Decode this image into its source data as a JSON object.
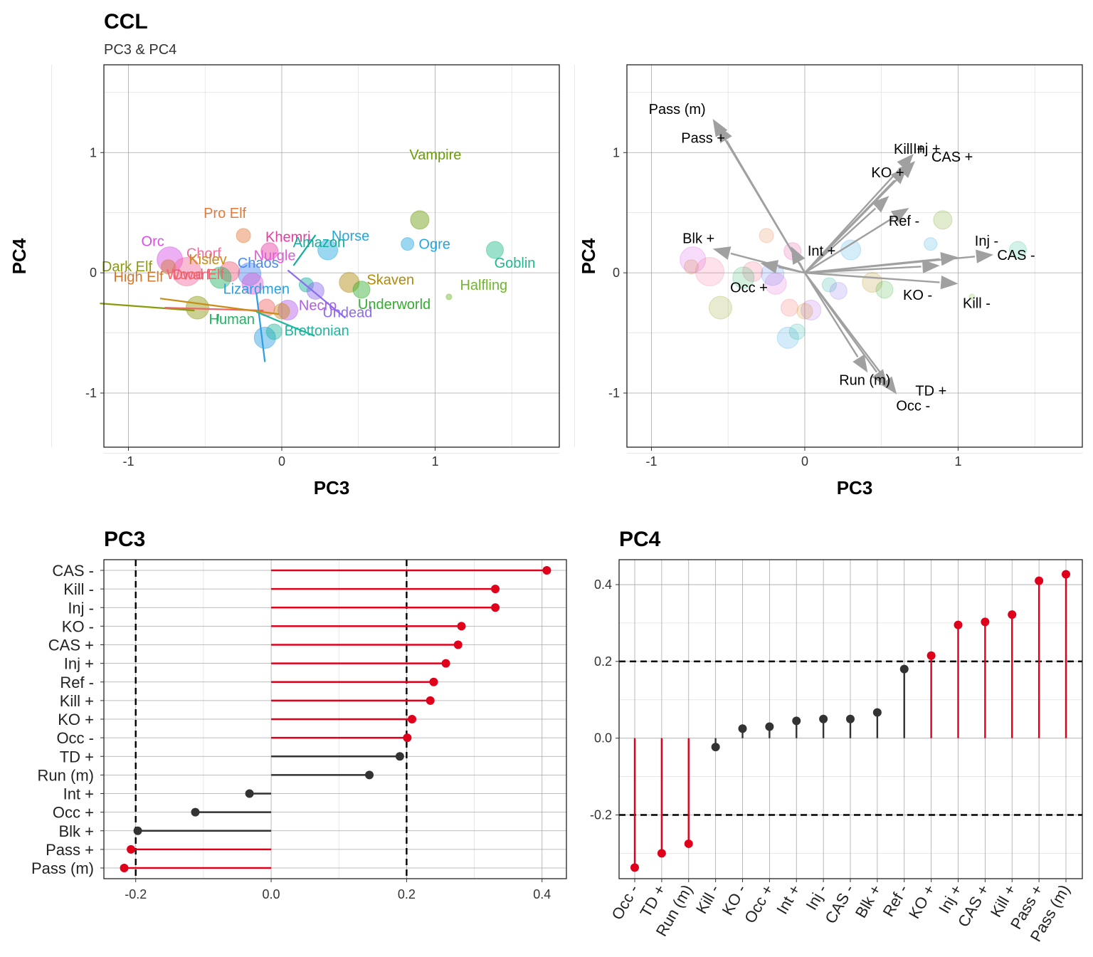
{
  "title": "CCL",
  "subtitle": "PC3 & PC4",
  "colors": {
    "positive_highlight": "#e0001b",
    "neutral": "#333333",
    "arrow": "#a0a0a0"
  },
  "chart_data": [
    {
      "type": "scatter",
      "xlabel": "PC3",
      "ylabel": "PC4",
      "xlim": [
        -1.16,
        1.81
      ],
      "ylim": [
        -1.45,
        1.73
      ],
      "xticks": [
        -1,
        0,
        1
      ],
      "yticks": [
        -1,
        0,
        1
      ],
      "grid": true,
      "points": [
        {
          "name": "Vampire",
          "x": 0.9,
          "y": 0.44,
          "size": 13,
          "color": "#6a9c08"
        },
        {
          "name": "Pro Elf",
          "x": -0.25,
          "y": 0.31,
          "size": 10,
          "color": "#e37a39"
        },
        {
          "name": "Khemri",
          "x": -0.08,
          "y": 0.18,
          "size": 12,
          "color": "#e63ba1"
        },
        {
          "name": "Norse",
          "x": 0.3,
          "y": 0.19,
          "size": 14,
          "color": "#24a6e0"
        },
        {
          "name": "Ogre",
          "x": 0.82,
          "y": 0.24,
          "size": 9,
          "color": "#24a6e0"
        },
        {
          "name": "Goblin",
          "x": 1.39,
          "y": 0.19,
          "size": 12,
          "color": "#1eba8c"
        },
        {
          "name": "Orc",
          "x": -0.73,
          "y": 0.11,
          "size": 18,
          "color": "#d84de6"
        },
        {
          "name": "Chorf",
          "x": -0.62,
          "y": 0.01,
          "size": 20,
          "color": "#f36b9c"
        },
        {
          "name": "High Elf",
          "x": -0.74,
          "y": 0.05,
          "size": 10,
          "color": "#d1762c"
        },
        {
          "name": "Chaos",
          "x": -0.21,
          "y": -0.01,
          "size": 16,
          "color": "#4a89f0"
        },
        {
          "name": "Amazon",
          "x": 0.16,
          "y": -0.1,
          "size": 10,
          "color": "#14ad9c"
        },
        {
          "name": "Skaven",
          "x": 0.44,
          "y": -0.08,
          "size": 14,
          "color": "#b08a08"
        },
        {
          "name": "Dwarf",
          "x": -0.34,
          "y": 0.01,
          "size": 14,
          "color": "#f05a7a"
        },
        {
          "name": "Human",
          "x": -0.4,
          "y": -0.04,
          "size": 15,
          "color": "#22b361"
        },
        {
          "name": "Nurgle",
          "x": -0.19,
          "y": -0.09,
          "size": 15,
          "color": "#e05bd8"
        },
        {
          "name": "Necro",
          "x": 0.04,
          "y": -0.31,
          "size": 14,
          "color": "#b35be6"
        },
        {
          "name": "Underworld",
          "x": 0.52,
          "y": -0.14,
          "size": 12,
          "color": "#33ad2e"
        },
        {
          "name": "Halfling",
          "x": 1.09,
          "y": -0.2,
          "size": 4,
          "color": "#6fb62d"
        },
        {
          "name": "Undead",
          "x": 0.22,
          "y": -0.15,
          "size": 12,
          "color": "#8d6bf0"
        },
        {
          "name": "Dark Elf",
          "x": -0.55,
          "y": -0.29,
          "size": 16,
          "color": "#8a9a0d"
        },
        {
          "name": "Wood Elf",
          "x": -0.1,
          "y": -0.29,
          "size": 12,
          "color": "#f06666"
        },
        {
          "name": "Lizardmen",
          "x": -0.11,
          "y": -0.54,
          "size": 15,
          "color": "#2a9ee3"
        },
        {
          "name": "Brettonian",
          "x": -0.05,
          "y": -0.49,
          "size": 11,
          "color": "#1fb59f"
        },
        {
          "name": "Kislev",
          "x": 0.0,
          "y": -0.32,
          "size": 11,
          "color": "#c98c14"
        }
      ]
    },
    {
      "type": "biplot",
      "xlabel": "PC3",
      "ylabel": "PC4",
      "xlim": [
        -1.16,
        1.81
      ],
      "ylim": [
        -1.45,
        1.73
      ],
      "xticks": [
        -1,
        0,
        1
      ],
      "yticks": [
        -1,
        0,
        1
      ],
      "grid": true,
      "arrows": [
        {
          "name": "Pass (m)",
          "x": -0.6,
          "y": 1.28
        },
        {
          "name": "Pass +",
          "x": -0.57,
          "y": 1.23
        },
        {
          "name": "Kill +",
          "x": 0.71,
          "y": 0.99
        },
        {
          "name": "CAS +",
          "x": 0.72,
          "y": 0.93
        },
        {
          "name": "Inj +",
          "x": 0.67,
          "y": 0.88
        },
        {
          "name": "KO +",
          "x": 0.55,
          "y": 0.64
        },
        {
          "name": "Ref -",
          "x": 0.68,
          "y": 0.54
        },
        {
          "name": "Int +",
          "x": -0.09,
          "y": 0.22
        },
        {
          "name": "Blk +",
          "x": -0.6,
          "y": 0.2
        },
        {
          "name": "Occ +",
          "x": -0.29,
          "y": 0.08
        },
        {
          "name": "Inj -",
          "x": 1.0,
          "y": 0.13
        },
        {
          "name": "CAS -",
          "x": 1.23,
          "y": 0.15
        },
        {
          "name": "KO -",
          "x": 0.88,
          "y": 0.06
        },
        {
          "name": "Kill -",
          "x": 1.0,
          "y": -0.09
        },
        {
          "name": "Run (m)",
          "x": 0.41,
          "y": -0.83
        },
        {
          "name": "TD +",
          "x": 0.54,
          "y": -0.95
        },
        {
          "name": "Occ -",
          "x": 0.6,
          "y": -1.01
        }
      ]
    },
    {
      "type": "lollipop",
      "title": "PC3",
      "orientation": "horizontal",
      "xlim": [
        -0.247,
        0.436
      ],
      "xticks": [
        "-0.2",
        "0.0",
        "0.2",
        "0.4"
      ],
      "threshold_lines": [
        -0.2,
        0.2
      ],
      "categories": [
        "CAS -",
        "Kill -",
        "Inj -",
        "KO -",
        "CAS +",
        "Inj +",
        "Ref -",
        "Kill +",
        "KO +",
        "Occ -",
        "TD +",
        "Run (m)",
        "Int +",
        "Occ +",
        "Blk +",
        "Pass +",
        "Pass (m)"
      ],
      "values": [
        0.407,
        0.331,
        0.331,
        0.281,
        0.276,
        0.258,
        0.24,
        0.235,
        0.208,
        0.201,
        0.19,
        0.145,
        -0.032,
        -0.112,
        -0.197,
        -0.207,
        -0.217
      ]
    },
    {
      "type": "lollipop",
      "title": "PC4",
      "orientation": "vertical",
      "ylim": [
        -0.366,
        0.465
      ],
      "yticks": [
        "-0.2",
        "0.0",
        "0.2",
        "0.4"
      ],
      "threshold_lines": [
        -0.2,
        0.2
      ],
      "categories": [
        "Occ -",
        "TD +",
        "Run (m)",
        "Kill -",
        "KO -",
        "Occ +",
        "Int +",
        "Inj -",
        "CAS -",
        "Blk +",
        "Ref -",
        "KO +",
        "Inj +",
        "CAS +",
        "Kill +",
        "Pass +",
        "Pass (m)"
      ],
      "values": [
        -0.337,
        -0.3,
        -0.275,
        -0.023,
        0.025,
        0.03,
        0.045,
        0.05,
        0.05,
        0.067,
        0.18,
        0.215,
        0.295,
        0.303,
        0.322,
        0.41,
        0.427
      ]
    }
  ]
}
